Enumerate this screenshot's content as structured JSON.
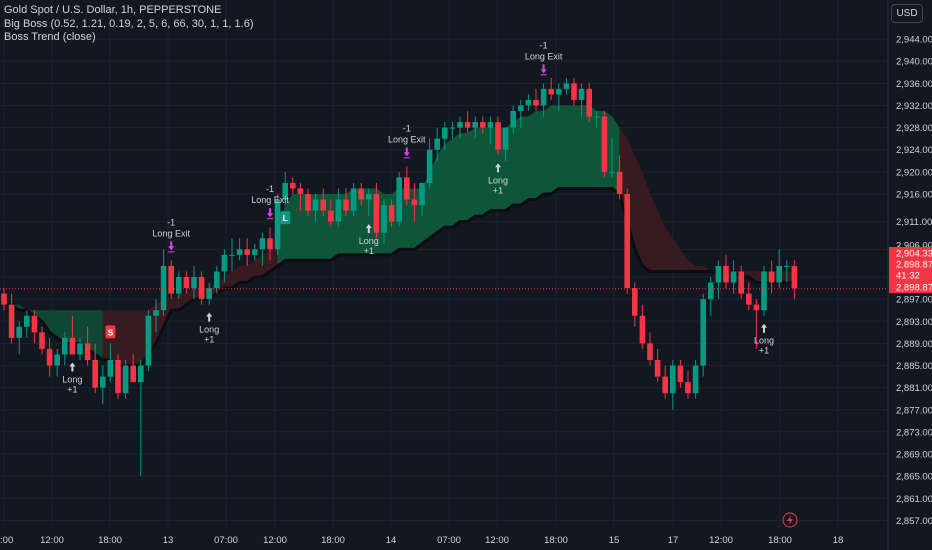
{
  "header": {
    "symbol_line": "Gold Spot / U.S. Dollar, 1h, PEPPERSTONE",
    "indicator_1": "Big Boss (0.52, 1.21, 0.19, 2, 5, 6, 66, 30, 1, 1, 1.6)",
    "indicator_2": "Boss Trend (close)",
    "currency": "USD"
  },
  "colors": {
    "background": "#131722",
    "up": "#089981",
    "down": "#f23645",
    "cloud_green": "#0e5a3c",
    "cloud_red": "#3a1b22",
    "trend_line": "#0b0d12",
    "signal_magenta": "#e040fb",
    "price_line": "#f23645",
    "grid": "#1e222d",
    "text": "#d1d4dc"
  },
  "chart_data": {
    "type": "candlestick",
    "ylim": [
      2856,
      2946
    ],
    "y_ticks": [
      "2,944.00",
      "2,940.00",
      "2,936.00",
      "2,932.00",
      "2,928.00",
      "2,924.00",
      "2,920.00",
      "2,916.00",
      "2,911.00",
      "2,906.00",
      "2,901.00",
      "2,897.00",
      "2,893.00",
      "2,889.00",
      "2,885.00",
      "2,881.00",
      "2,877.00",
      "2,873.00",
      "2,869.00",
      "2,865.00",
      "2,861.00",
      "2,857.00"
    ],
    "x_ticks": [
      "2:00",
      "12:00",
      "18:00",
      "13",
      "07:00",
      "12:00",
      "18:00",
      "14",
      "07:00",
      "12:00",
      "18:00",
      "15",
      "17",
      "12:00",
      "18:00",
      "18"
    ],
    "price_labels": [
      {
        "text": "2,906.00",
        "kind": "plain"
      },
      {
        "text": "2,904.33",
        "kind": "red"
      },
      {
        "text": "2,898.87",
        "kind": "red"
      },
      {
        "text": "41:32",
        "kind": "red"
      },
      {
        "text": "2,898.87",
        "kind": "red"
      }
    ],
    "current_price": 2898.87,
    "candles": [
      [
        2898,
        2899,
        2895,
        2896
      ],
      [
        2896,
        2898,
        2889,
        2890
      ],
      [
        2890,
        2893,
        2887,
        2892
      ],
      [
        2892,
        2895,
        2890,
        2894
      ],
      [
        2894,
        2895,
        2889,
        2891
      ],
      [
        2891,
        2892,
        2887,
        2888
      ],
      [
        2888,
        2890,
        2883,
        2885
      ],
      [
        2885,
        2888,
        2883,
        2887
      ],
      [
        2887,
        2891,
        2885,
        2890
      ],
      [
        2890,
        2894,
        2887,
        2887
      ],
      [
        2887,
        2890,
        2886,
        2889
      ],
      [
        2889,
        2892,
        2885,
        2886
      ],
      [
        2886,
        2889,
        2880,
        2881
      ],
      [
        2881,
        2885,
        2878,
        2883
      ],
      [
        2883,
        2889,
        2882,
        2886
      ],
      [
        2886,
        2887,
        2879,
        2880
      ],
      [
        2880,
        2886,
        2879,
        2885
      ],
      [
        2885,
        2887,
        2882,
        2882
      ],
      [
        2882,
        2886,
        2865,
        2885
      ],
      [
        2885,
        2895,
        2884,
        2894
      ],
      [
        2894,
        2897,
        2891,
        2895
      ],
      [
        2895,
        2906,
        2894,
        2903
      ],
      [
        2903,
        2904,
        2897,
        2898
      ],
      [
        2898,
        2902,
        2897,
        2901
      ],
      [
        2901,
        2902,
        2898,
        2899
      ],
      [
        2899,
        2903,
        2897,
        2901
      ],
      [
        2901,
        2902,
        2896,
        2897
      ],
      [
        2897,
        2900,
        2896,
        2899
      ],
      [
        2899,
        2903,
        2898,
        2902
      ],
      [
        2902,
        2906,
        2900,
        2905
      ],
      [
        2905,
        2908,
        2902,
        2905
      ],
      [
        2905,
        2908,
        2904,
        2906
      ],
      [
        2906,
        2908,
        2903,
        2905
      ],
      [
        2905,
        2907,
        2904,
        2906
      ],
      [
        2906,
        2909,
        2903,
        2908
      ],
      [
        2908,
        2910,
        2904,
        2906
      ],
      [
        2906,
        2916,
        2905,
        2915
      ],
      [
        2915,
        2920,
        2914,
        2918
      ],
      [
        2918,
        2919,
        2916,
        2917
      ],
      [
        2917,
        2918,
        2913,
        2916
      ],
      [
        2916,
        2917,
        2912,
        2913
      ],
      [
        2913,
        2916,
        2911,
        2915
      ],
      [
        2915,
        2917,
        2912,
        2913
      ],
      [
        2913,
        2915,
        2910,
        2911
      ],
      [
        2911,
        2917,
        2910,
        2915
      ],
      [
        2915,
        2917,
        2912,
        2913
      ],
      [
        2913,
        2918,
        2912,
        2917
      ],
      [
        2917,
        2918,
        2914,
        2915
      ],
      [
        2915,
        2917,
        2912,
        2916
      ],
      [
        2916,
        2918,
        2908,
        2909
      ],
      [
        2909,
        2915,
        2907,
        2914
      ],
      [
        2914,
        2915,
        2910,
        2911
      ],
      [
        2911,
        2920,
        2910,
        2919
      ],
      [
        2919,
        2921,
        2914,
        2915
      ],
      [
        2915,
        2918,
        2911,
        2914
      ],
      [
        2914,
        2918,
        2912,
        2918
      ],
      [
        2918,
        2926,
        2917,
        2924
      ],
      [
        2924,
        2928,
        2922,
        2926
      ],
      [
        2926,
        2929,
        2924,
        2928
      ],
      [
        2928,
        2929,
        2926,
        2928
      ],
      [
        2928,
        2930,
        2926,
        2929
      ],
      [
        2929,
        2931,
        2927,
        2928
      ],
      [
        2928,
        2930,
        2926,
        2929
      ],
      [
        2929,
        2930,
        2927,
        2928
      ],
      [
        2928,
        2930,
        2925,
        2929
      ],
      [
        2929,
        2930,
        2923,
        2924
      ],
      [
        2924,
        2928,
        2922,
        2928
      ],
      [
        2928,
        2932,
        2927,
        2931
      ],
      [
        2931,
        2933,
        2928,
        2932
      ],
      [
        2932,
        2934,
        2931,
        2933
      ],
      [
        2933,
        2935,
        2931,
        2932
      ],
      [
        2932,
        2936,
        2930,
        2935
      ],
      [
        2935,
        2937,
        2933,
        2934
      ],
      [
        2934,
        2936,
        2931,
        2935
      ],
      [
        2935,
        2937,
        2934,
        2936
      ],
      [
        2936,
        2937,
        2932,
        2933
      ],
      [
        2933,
        2936,
        2930,
        2935
      ],
      [
        2935,
        2936,
        2929,
        2930
      ],
      [
        2930,
        2931,
        2928,
        2930
      ],
      [
        2930,
        2931,
        2919,
        2920
      ],
      [
        2920,
        2926,
        2919,
        2920
      ],
      [
        2920,
        2923,
        2915,
        2916
      ],
      [
        2916,
        2917,
        2898,
        2899
      ],
      [
        2899,
        2900,
        2892,
        2894
      ],
      [
        2894,
        2896,
        2888,
        2889
      ],
      [
        2889,
        2891,
        2885,
        2886
      ],
      [
        2886,
        2888,
        2882,
        2883
      ],
      [
        2883,
        2885,
        2879,
        2880
      ],
      [
        2880,
        2886,
        2877,
        2885
      ],
      [
        2885,
        2886,
        2881,
        2882
      ],
      [
        2882,
        2884,
        2879,
        2880
      ],
      [
        2880,
        2886,
        2879,
        2885
      ],
      [
        2885,
        2898,
        2883,
        2897
      ],
      [
        2897,
        2901,
        2894,
        2900
      ],
      [
        2900,
        2904,
        2897,
        2903
      ],
      [
        2903,
        2905,
        2899,
        2900
      ],
      [
        2900,
        2904,
        2898,
        2902
      ],
      [
        2902,
        2903,
        2897,
        2898
      ],
      [
        2898,
        2900,
        2895,
        2896
      ],
      [
        2896,
        2897,
        2888,
        2895
      ],
      [
        2895,
        2903,
        2894,
        2902
      ],
      [
        2902,
        2904,
        2898,
        2900
      ],
      [
        2900,
        2906,
        2899,
        2903
      ],
      [
        2903,
        2904,
        2900,
        2903
      ],
      [
        2903,
        2904,
        2897,
        2899
      ]
    ],
    "cloud": [
      [
        2896,
        2897
      ],
      [
        2896,
        2896
      ],
      [
        2895,
        2896
      ],
      [
        2895,
        2895
      ],
      [
        2894,
        2895
      ],
      [
        2893,
        2895
      ],
      [
        2891,
        2895
      ],
      [
        2890,
        2895
      ],
      [
        2889,
        2895
      ],
      [
        2889,
        2895
      ],
      [
        2889,
        2895
      ],
      [
        2888,
        2895
      ],
      [
        2887,
        2895
      ],
      [
        2886,
        2895
      ],
      [
        2886,
        2895
      ],
      [
        2885,
        2895
      ],
      [
        2885,
        2895
      ],
      [
        2885,
        2895
      ],
      [
        2885,
        2895
      ],
      [
        2887,
        2895
      ],
      [
        2889,
        2896
      ],
      [
        2892,
        2897
      ],
      [
        2895,
        2897
      ],
      [
        2895,
        2898
      ],
      [
        2896,
        2898
      ],
      [
        2897,
        2899
      ],
      [
        2897,
        2899
      ],
      [
        2897,
        2899
      ],
      [
        2898,
        2900
      ],
      [
        2899,
        2901
      ],
      [
        2899,
        2902
      ],
      [
        2900,
        2903
      ],
      [
        2900,
        2903
      ],
      [
        2901,
        2904
      ],
      [
        2901,
        2905
      ],
      [
        2902,
        2906
      ],
      [
        2903,
        2910
      ],
      [
        2904,
        2914
      ],
      [
        2904,
        2916
      ],
      [
        2904,
        2916
      ],
      [
        2904,
        2916
      ],
      [
        2904,
        2916
      ],
      [
        2904,
        2916
      ],
      [
        2904,
        2916
      ],
      [
        2905,
        2916
      ],
      [
        2905,
        2916
      ],
      [
        2905,
        2917
      ],
      [
        2905,
        2917
      ],
      [
        2905,
        2917
      ],
      [
        2905,
        2917
      ],
      [
        2905,
        2916
      ],
      [
        2905,
        2916
      ],
      [
        2906,
        2917
      ],
      [
        2906,
        2917
      ],
      [
        2906,
        2917
      ],
      [
        2907,
        2917
      ],
      [
        2908,
        2920
      ],
      [
        2909,
        2923
      ],
      [
        2910,
        2925
      ],
      [
        2910,
        2926
      ],
      [
        2911,
        2927
      ],
      [
        2911,
        2927
      ],
      [
        2912,
        2928
      ],
      [
        2912,
        2928
      ],
      [
        2913,
        2928
      ],
      [
        2913,
        2928
      ],
      [
        2913,
        2928
      ],
      [
        2914,
        2929
      ],
      [
        2914,
        2930
      ],
      [
        2915,
        2930
      ],
      [
        2915,
        2931
      ],
      [
        2916,
        2931
      ],
      [
        2916,
        2932
      ],
      [
        2917,
        2932
      ],
      [
        2917,
        2932
      ],
      [
        2917,
        2932
      ],
      [
        2917,
        2932
      ],
      [
        2917,
        2932
      ],
      [
        2917,
        2931
      ],
      [
        2917,
        2931
      ],
      [
        2917,
        2930
      ],
      [
        2916,
        2928
      ],
      [
        2911,
        2926
      ],
      [
        2906,
        2923
      ],
      [
        2903,
        2920
      ],
      [
        2902,
        2916
      ],
      [
        2902,
        2913
      ],
      [
        2902,
        2910
      ],
      [
        2902,
        2908
      ],
      [
        2902,
        2906
      ],
      [
        2902,
        2904
      ],
      [
        2902,
        2903
      ],
      [
        2902,
        2903
      ],
      [
        2902,
        2902
      ],
      [
        2902,
        2902
      ],
      [
        2902,
        2902
      ],
      [
        2902,
        2902
      ],
      [
        2901,
        2902
      ],
      [
        2901,
        2902
      ],
      [
        2900,
        2902
      ],
      [
        2900,
        2902
      ],
      [
        2900,
        2902
      ],
      [
        2900,
        2902
      ],
      [
        2900,
        2902
      ],
      [
        2900,
        2902
      ]
    ],
    "signals": [
      {
        "kind": "long",
        "index": 9,
        "label": "Long",
        "sub": "+1"
      },
      {
        "kind": "long",
        "index": 27,
        "label": "Long",
        "sub": "+1"
      },
      {
        "kind": "long",
        "index": 48,
        "label": "Long",
        "sub": "+1"
      },
      {
        "kind": "long",
        "index": 65,
        "label": "Long",
        "sub": "+1"
      },
      {
        "kind": "long",
        "index": 100,
        "label": "Long",
        "sub": "+1"
      },
      {
        "kind": "exit",
        "index": 22,
        "label": "Long Exit",
        "sub": "-1"
      },
      {
        "kind": "exit",
        "index": 35,
        "label": "Long Exit",
        "sub": "-1"
      },
      {
        "kind": "exit",
        "index": 53,
        "label": "Long Exit",
        "sub": "-1"
      },
      {
        "kind": "exit",
        "index": 71,
        "label": "Long Exit",
        "sub": "-1"
      }
    ],
    "badges": [
      {
        "text": "S",
        "index": 14,
        "kind": "sell"
      },
      {
        "text": "L",
        "index": 37,
        "kind": "buy"
      }
    ]
  }
}
